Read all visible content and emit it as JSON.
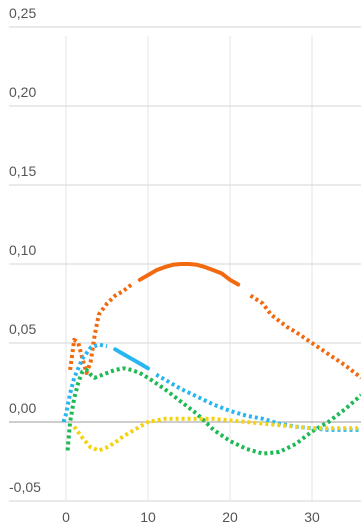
{
  "chart_data": {
    "type": "line",
    "xlim": [
      -2,
      36
    ],
    "ylim": [
      -0.06,
      0.25
    ],
    "x_ticks": [
      0,
      10,
      20,
      30
    ],
    "x_tick_labels": [
      "0",
      "10",
      "20",
      "30"
    ],
    "y_ticks": [
      0.25,
      0.2,
      0.15,
      0.1,
      0.05,
      0.0,
      -0.05
    ],
    "y_tick_labels": [
      "0,25",
      "0,20",
      "0,15",
      "0,10",
      "0,05",
      "0,00",
      "-0,05"
    ],
    "grid": true,
    "legend": "none",
    "series": [
      {
        "color": "#f26a0f",
        "segments": [
          {
            "style": "dotted",
            "points": [
              [
                0.5,
                0.033
              ],
              [
                1,
                0.052
              ],
              [
                1.5,
                0.05
              ],
              [
                2,
                0.04
              ],
              [
                2.5,
                0.031
              ],
              [
                3,
                0.038
              ],
              [
                3.5,
                0.055
              ],
              [
                4,
                0.068
              ],
              [
                5,
                0.075
              ],
              [
                6,
                0.08
              ],
              [
                7,
                0.083
              ],
              [
                8,
                0.087
              ]
            ]
          },
          {
            "style": "solid",
            "points": [
              [
                9,
                0.09
              ],
              [
                10,
                0.093
              ],
              [
                11,
                0.096
              ],
              [
                12,
                0.098
              ],
              [
                13,
                0.0995
              ],
              [
                14,
                0.1
              ],
              [
                15,
                0.1
              ],
              [
                16,
                0.0995
              ],
              [
                17,
                0.098
              ],
              [
                18,
                0.096
              ],
              [
                19,
                0.094
              ],
              [
                20,
                0.09
              ],
              [
                21,
                0.087
              ]
            ]
          },
          {
            "style": "dotted",
            "points": [
              [
                22.5,
                0.08
              ],
              [
                24,
                0.075
              ],
              [
                25,
                0.068
              ],
              [
                26,
                0.064
              ],
              [
                27,
                0.06
              ],
              [
                28,
                0.057
              ],
              [
                30,
                0.05
              ],
              [
                32,
                0.043
              ],
              [
                34,
                0.036
              ],
              [
                36,
                0.028
              ]
            ]
          }
        ]
      },
      {
        "color": "#27b6f0",
        "segments": [
          {
            "style": "dotted",
            "points": [
              [
                -0.3,
                0.0
              ],
              [
                0,
                0.005
              ],
              [
                0.5,
                0.018
              ],
              [
                1,
                0.028
              ],
              [
                2,
                0.04
              ],
              [
                3,
                0.047
              ],
              [
                4,
                0.049
              ],
              [
                5,
                0.048
              ]
            ]
          },
          {
            "style": "solid",
            "points": [
              [
                6,
                0.046
              ],
              [
                7,
                0.043
              ],
              [
                8,
                0.04
              ],
              [
                9,
                0.037
              ],
              [
                10,
                0.034
              ]
            ]
          },
          {
            "style": "dotted",
            "points": [
              [
                11,
                0.03
              ],
              [
                12,
                0.027
              ],
              [
                14,
                0.021
              ],
              [
                16,
                0.016
              ],
              [
                18,
                0.011
              ],
              [
                20,
                0.007
              ],
              [
                22,
                0.004
              ],
              [
                24,
                0.002
              ],
              [
                26,
                -0.001
              ],
              [
                28,
                -0.003
              ],
              [
                30,
                -0.004
              ],
              [
                32,
                -0.005
              ],
              [
                34,
                -0.005
              ],
              [
                36,
                -0.005
              ]
            ]
          }
        ]
      },
      {
        "color": "#1db954",
        "segments": [
          {
            "style": "dotted",
            "points": [
              [
                0.2,
                -0.018
              ],
              [
                0.5,
                0.0
              ],
              [
                1,
                0.015
              ],
              [
                1.5,
                0.025
              ],
              [
                2,
                0.032
              ],
              [
                2.5,
                0.033
              ],
              [
                3,
                0.03
              ],
              [
                3.5,
                0.028
              ],
              [
                4,
                0.029
              ],
              [
                5,
                0.031
              ],
              [
                6,
                0.033
              ],
              [
                7,
                0.034
              ],
              [
                8,
                0.033
              ],
              [
                9,
                0.031
              ],
              [
                10,
                0.028
              ],
              [
                12,
                0.021
              ],
              [
                14,
                0.013
              ],
              [
                16,
                0.005
              ],
              [
                18,
                -0.005
              ],
              [
                20,
                -0.012
              ],
              [
                22,
                -0.017
              ],
              [
                24,
                -0.02
              ],
              [
                26,
                -0.019
              ],
              [
                28,
                -0.014
              ],
              [
                30,
                -0.006
              ],
              [
                32,
                0.0
              ],
              [
                34,
                0.008
              ],
              [
                36,
                0.017
              ]
            ]
          }
        ]
      },
      {
        "color": "#f5d210",
        "segments": [
          {
            "style": "dotted",
            "points": [
              [
                1,
                -0.003
              ],
              [
                2,
                -0.01
              ],
              [
                3,
                -0.016
              ],
              [
                4,
                -0.018
              ],
              [
                5,
                -0.016
              ],
              [
                6,
                -0.013
              ],
              [
                7,
                -0.009
              ],
              [
                8,
                -0.006
              ],
              [
                9,
                -0.003
              ],
              [
                10,
                0.0
              ],
              [
                11,
                0.001
              ],
              [
                12,
                0.002
              ],
              [
                13,
                0.002
              ],
              [
                14,
                0.002
              ],
              [
                16,
                0.002
              ],
              [
                18,
                0.002
              ],
              [
                20,
                0.001
              ],
              [
                22,
                0.0
              ],
              [
                24,
                -0.001
              ],
              [
                26,
                -0.002
              ],
              [
                28,
                -0.003
              ],
              [
                30,
                -0.004
              ],
              [
                32,
                -0.004
              ],
              [
                34,
                -0.004
              ],
              [
                36,
                -0.004
              ]
            ]
          }
        ]
      }
    ]
  }
}
